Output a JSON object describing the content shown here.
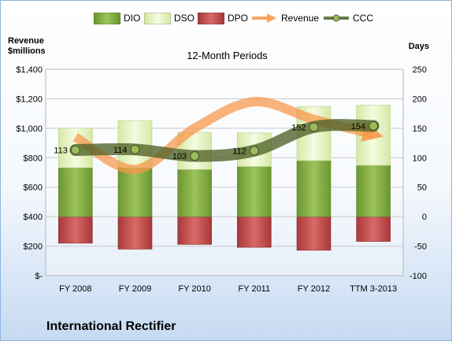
{
  "chart_data": {
    "type": "bar",
    "subtitle": "12-Month Periods",
    "company": "International Rectifier",
    "y_left_title": [
      "Revenue",
      "$millions"
    ],
    "y_right_title": "Days",
    "categories": [
      "FY 2008",
      "FY 2009",
      "FY 2010",
      "FY 2011",
      "FY 2012",
      "TTM 3-2013"
    ],
    "y_left_ticks": [
      "$1,400",
      "$1,200",
      "$1,000",
      "$800",
      "$600",
      "$400",
      "$200",
      "$-"
    ],
    "y_left_lim": [
      0,
      1400
    ],
    "y_right_ticks": [
      "250",
      "200",
      "150",
      "100",
      "50",
      "0",
      "-50",
      "-100"
    ],
    "y_right_lim": [
      -100,
      250
    ],
    "series": [
      {
        "name": "DIO",
        "kind": "stacked-bar",
        "color": "#7aa73a",
        "values": [
          83,
          83,
          80,
          85,
          95,
          87
        ]
      },
      {
        "name": "DSO",
        "kind": "stacked-bar",
        "color": "#e9f3c6",
        "values": [
          67,
          80,
          63,
          57,
          92,
          102
        ]
      },
      {
        "name": "DPO",
        "kind": "stacked-bar-negative",
        "color": "#c0504d",
        "values": [
          -45,
          -55,
          -47,
          -52,
          -57,
          -42
        ]
      },
      {
        "name": "Revenue",
        "kind": "smooth-line-left-axis",
        "color": "#f79646",
        "values": [
          940,
          720,
          1000,
          1180,
          1060,
          960
        ]
      },
      {
        "name": "CCC",
        "kind": "smooth-line-right-axis",
        "color": "#4f6228",
        "values": [
          113,
          114,
          103,
          112,
          152,
          154
        ],
        "labels": [
          "113",
          "114",
          "103",
          "112",
          "152",
          "154"
        ]
      }
    ],
    "legend": [
      "DIO",
      "DSO",
      "DPO",
      "Revenue",
      "CCC"
    ],
    "legend_position": "top",
    "grid": true
  }
}
